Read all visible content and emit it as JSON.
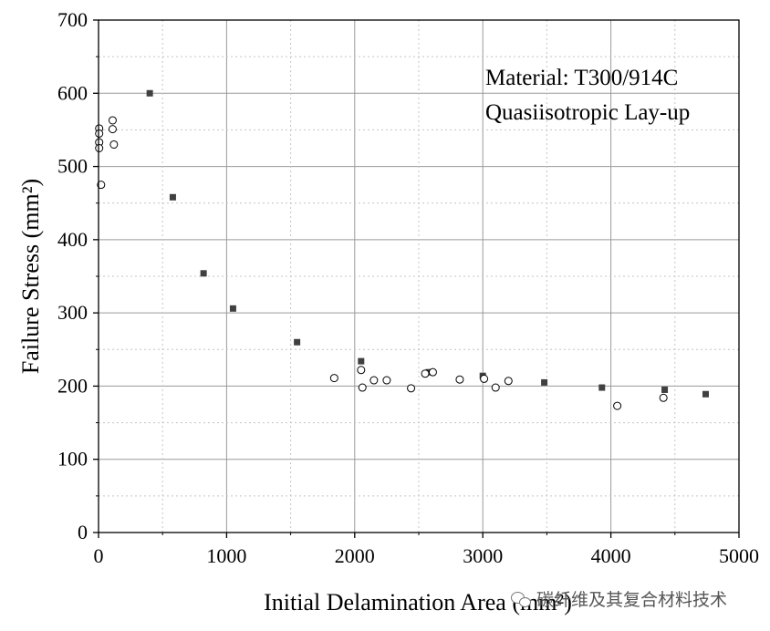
{
  "chart_data": {
    "type": "scatter",
    "title": "",
    "xlabel": "Initial Delamination Area (mm²)",
    "ylabel": "Failure Stress (mm²)",
    "xlim": [
      0,
      5000
    ],
    "ylim": [
      0,
      700
    ],
    "x_ticks": [
      0,
      1000,
      2000,
      3000,
      4000,
      5000
    ],
    "y_ticks": [
      0,
      100,
      200,
      300,
      400,
      500,
      600,
      700
    ],
    "grid": true,
    "annotations": [
      "Material: T300/914C",
      "Quasiisotropic Lay-up"
    ],
    "series": [
      {
        "marker": "square-filled",
        "color": "#404040",
        "points": [
          [
            400,
            600
          ],
          [
            580,
            458
          ],
          [
            820,
            354
          ],
          [
            1050,
            306
          ],
          [
            1550,
            260
          ],
          [
            2050,
            234
          ],
          [
            2580,
            219
          ],
          [
            3000,
            214
          ],
          [
            3480,
            205
          ],
          [
            3930,
            198
          ],
          [
            4420,
            195
          ],
          [
            4740,
            189
          ]
        ]
      },
      {
        "marker": "circle-open",
        "color": "#000000",
        "points": [
          [
            5,
            552
          ],
          [
            5,
            545
          ],
          [
            5,
            533
          ],
          [
            5,
            525
          ],
          [
            20,
            475
          ],
          [
            110,
            563
          ],
          [
            110,
            551
          ],
          [
            120,
            530
          ],
          [
            1840,
            211
          ],
          [
            2050,
            222
          ],
          [
            2060,
            198
          ],
          [
            2150,
            208
          ],
          [
            2250,
            208
          ],
          [
            2440,
            197
          ],
          [
            2550,
            217
          ],
          [
            2610,
            219
          ],
          [
            2820,
            209
          ],
          [
            3010,
            210
          ],
          [
            3100,
            198
          ],
          [
            3200,
            207
          ],
          [
            4050,
            173
          ],
          [
            4410,
            184
          ]
        ]
      }
    ]
  },
  "watermark": {
    "text": "碳纤维及其复合材料技术",
    "icon": "wechat-icon"
  }
}
